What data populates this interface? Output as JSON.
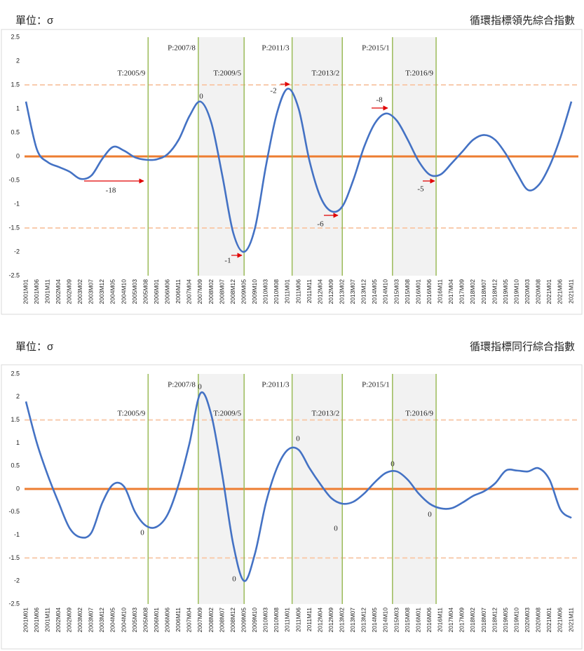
{
  "chart_data": [
    {
      "type": "line",
      "unit_label": "單位：σ",
      "title": "循環指標領先綜合指數",
      "categories": [
        "2001M01",
        "2001M06",
        "2001M11",
        "2002M04",
        "2002M09",
        "2003M02",
        "2003M07",
        "2003M12",
        "2004M05",
        "2004M10",
        "2005M03",
        "2005M08",
        "2006M01",
        "2006M06",
        "2006M11",
        "2007M04",
        "2007M09",
        "2008M02",
        "2008M07",
        "2008M12",
        "2009M05",
        "2009M10",
        "2010M03",
        "2010M08",
        "2011M01",
        "2011M06",
        "2011M11",
        "2012M04",
        "2012M09",
        "2013M02",
        "2013M07",
        "2013M12",
        "2014M05",
        "2014M10",
        "2015M03",
        "2015M08",
        "2016M01",
        "2016M06",
        "2016M11",
        "2017M04",
        "2017M09",
        "2018M02",
        "2018M07",
        "2018M12",
        "2019M05",
        "2019M10",
        "2020M03",
        "2020M08",
        "2021M01",
        "2021M06",
        "2021M11"
      ],
      "values": [
        1.15,
        0.15,
        -0.12,
        -0.22,
        -0.32,
        -0.47,
        -0.4,
        -0.05,
        0.2,
        0.12,
        -0.02,
        -0.07,
        -0.06,
        0.05,
        0.35,
        0.85,
        1.15,
        0.7,
        -0.4,
        -1.6,
        -2.0,
        -1.5,
        -0.2,
        0.9,
        1.42,
        1.0,
        -0.1,
        -0.85,
        -1.15,
        -1.05,
        -0.5,
        0.2,
        0.7,
        0.9,
        0.75,
        0.35,
        -0.1,
        -0.38,
        -0.38,
        -0.15,
        0.1,
        0.35,
        0.45,
        0.35,
        0.05,
        -0.35,
        -0.7,
        -0.6,
        -0.2,
        0.4,
        1.15
      ],
      "color": "#4472c4",
      "ylim": [
        -2.5,
        2.5
      ],
      "yticks": [
        -2.5,
        -2,
        -1.5,
        -1,
        -0.5,
        0,
        0.5,
        1,
        1.5,
        2,
        2.5
      ],
      "reference_lines": [
        {
          "label": "T:2005/9"
        },
        {
          "label": "P:2007/8"
        },
        {
          "label": "T:2009/5"
        },
        {
          "label": "P:2011/3"
        },
        {
          "label": "T:2013/2"
        },
        {
          "label": "P:2015/1"
        },
        {
          "label": "T:2016/9"
        }
      ],
      "reference_line_color": "#9bbb59",
      "shade_color": "#f2f2f2",
      "hlines": [
        {
          "value": 0,
          "color": "#ed7d31",
          "style": "solid"
        },
        {
          "value": 1.5,
          "color": "#f8cbad",
          "style": "dashed"
        },
        {
          "value": -1.5,
          "color": "#f8cbad",
          "style": "dashed"
        }
      ],
      "annotations": [
        {
          "text": -18
        },
        {
          "text": 0
        },
        {
          "text": -1
        },
        {
          "text": -2
        },
        {
          "text": -6
        },
        {
          "text": -8
        },
        {
          "text": -5
        }
      ],
      "annotation_color": "#e00000"
    },
    {
      "type": "line",
      "unit_label": "單位：σ",
      "title": "循環指標同行綜合指數",
      "categories": [
        "2001M01",
        "2001M06",
        "2001M11",
        "2002M04",
        "2002M09",
        "2003M02",
        "2003M07",
        "2003M12",
        "2004M05",
        "2004M10",
        "2005M03",
        "2005M08",
        "2006M01",
        "2006M06",
        "2006M11",
        "2007M04",
        "2007M09",
        "2008M02",
        "2008M07",
        "2008M12",
        "2009M05",
        "2009M10",
        "2010M03",
        "2010M08",
        "2011M01",
        "2011M06",
        "2011M11",
        "2012M04",
        "2012M09",
        "2013M02",
        "2013M07",
        "2013M12",
        "2014M05",
        "2014M10",
        "2015M03",
        "2015M08",
        "2016M01",
        "2016M06",
        "2016M11",
        "2017M04",
        "2017M09",
        "2018M02",
        "2018M07",
        "2018M12",
        "2019M05",
        "2019M10",
        "2020M03",
        "2020M08",
        "2021M01",
        "2021M06",
        "2021M11"
      ],
      "values": [
        1.9,
        1.0,
        0.3,
        -0.3,
        -0.85,
        -1.05,
        -0.95,
        -0.3,
        0.1,
        0.05,
        -0.5,
        -0.8,
        -0.82,
        -0.55,
        0.1,
        1.0,
        2.08,
        1.6,
        0.3,
        -1.2,
        -2.0,
        -1.4,
        -0.3,
        0.45,
        0.85,
        0.85,
        0.45,
        0.1,
        -0.2,
        -0.32,
        -0.28,
        -0.1,
        0.15,
        0.35,
        0.38,
        0.2,
        -0.1,
        -0.32,
        -0.42,
        -0.42,
        -0.3,
        -0.15,
        -0.05,
        0.12,
        0.4,
        0.4,
        0.38,
        0.45,
        0.2,
        -0.45,
        -0.63
      ],
      "color": "#4472c4",
      "ylim": [
        -2.5,
        2.5
      ],
      "yticks": [
        -2.5,
        -2,
        -1.5,
        -1,
        -0.5,
        0,
        0.5,
        1,
        1.5,
        2,
        2.5
      ],
      "reference_lines": [
        {
          "label": "T:2005/9"
        },
        {
          "label": "P:2007/8"
        },
        {
          "label": "T:2009/5"
        },
        {
          "label": "P:2011/3"
        },
        {
          "label": "T:2013/2"
        },
        {
          "label": "P:2015/1"
        },
        {
          "label": "T:2016/9"
        }
      ],
      "reference_line_color": "#9bbb59",
      "shade_color": "#f2f2f2",
      "hlines": [
        {
          "value": 0,
          "color": "#ed7d31",
          "style": "solid"
        },
        {
          "value": 1.5,
          "color": "#f8cbad",
          "style": "dashed"
        },
        {
          "value": -1.5,
          "color": "#f8cbad",
          "style": "dashed"
        }
      ],
      "annotations": [
        {
          "text": 0
        },
        {
          "text": 0
        },
        {
          "text": 0
        },
        {
          "text": 0
        },
        {
          "text": 0
        },
        {
          "text": 0
        },
        {
          "text": 0
        }
      ],
      "annotation_color": "#000000"
    }
  ]
}
